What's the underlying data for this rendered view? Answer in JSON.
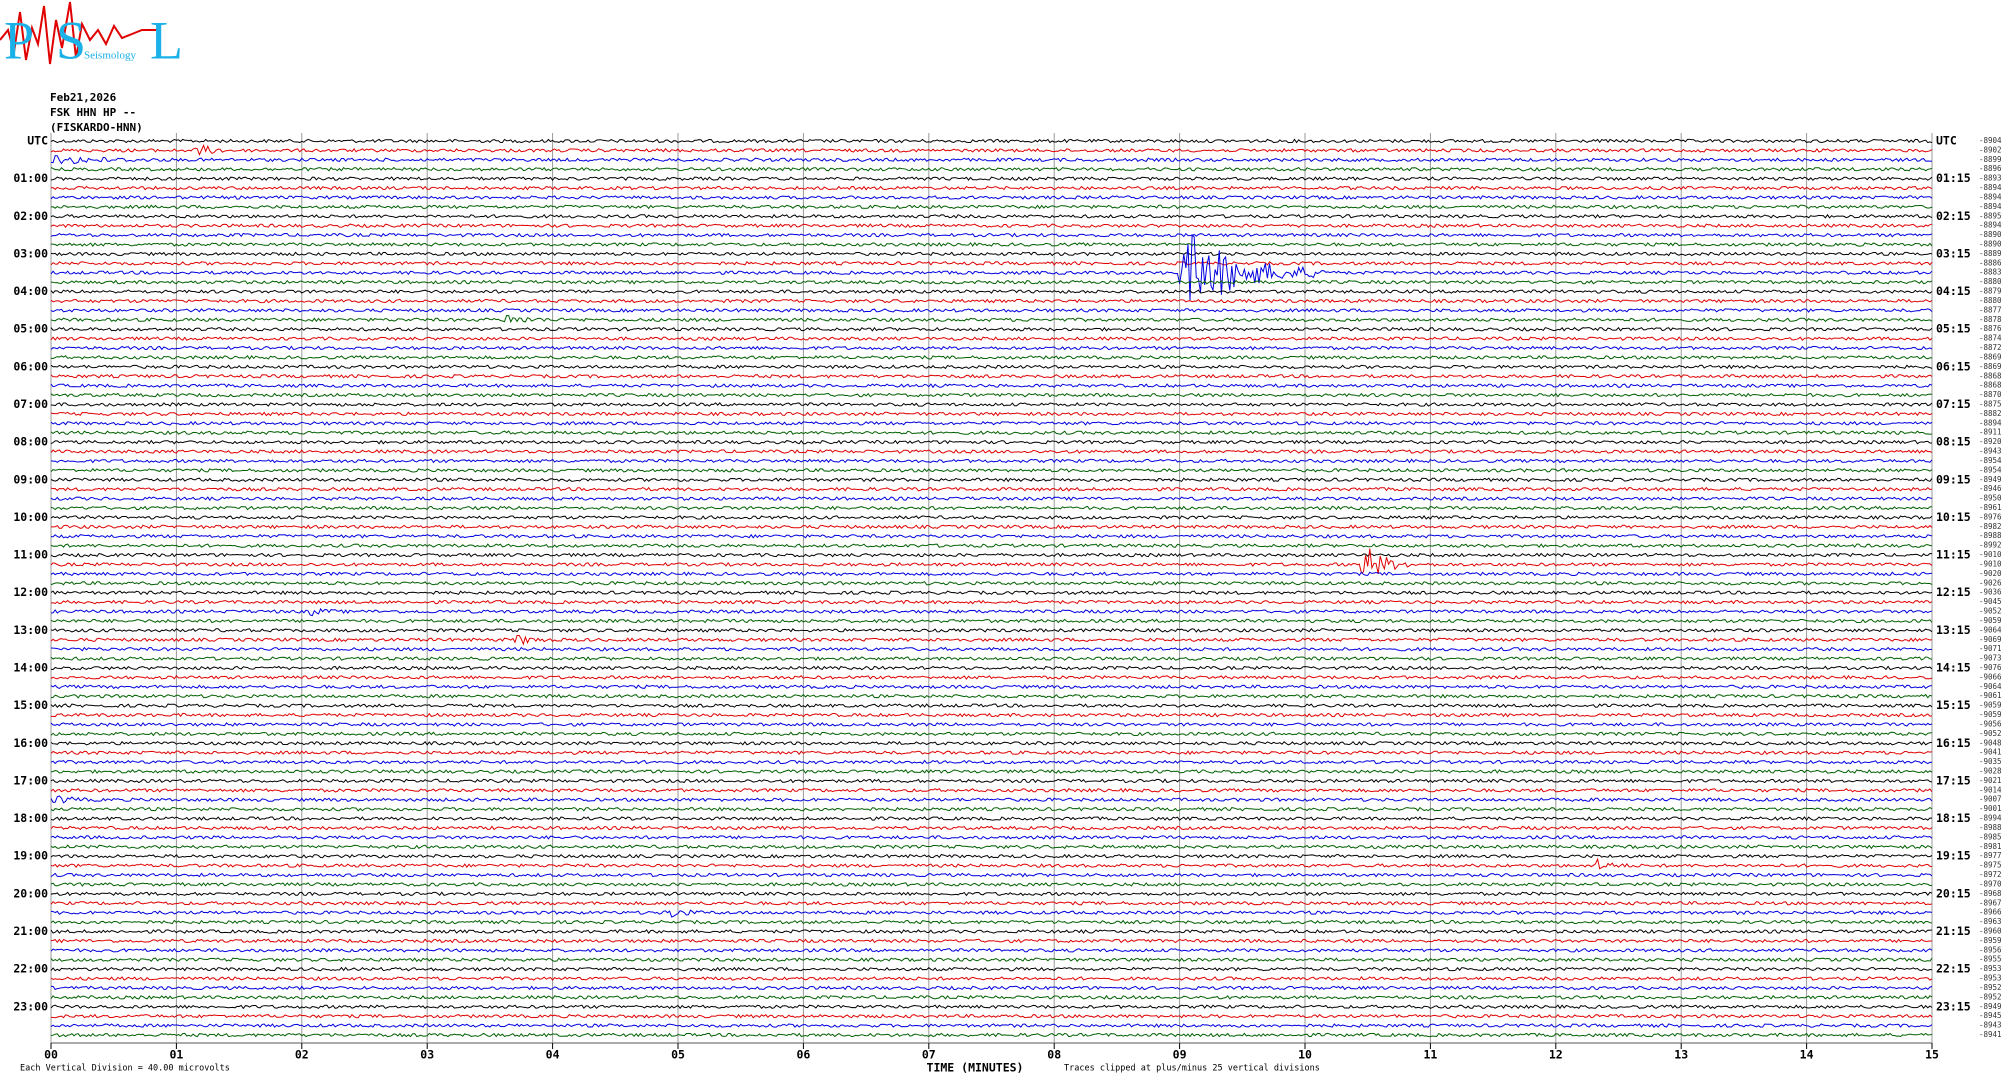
{
  "chart_data": {
    "type": "helicorder",
    "logo": {
      "letters": [
        "P",
        "S",
        "L"
      ],
      "text": "Seismology"
    },
    "date": "Feb21,2026",
    "station": "FSK HHN HP --",
    "station_name": "(FISKARDO-HNN)",
    "left_labels": [
      "UTC",
      null,
      null,
      null,
      "01:00",
      null,
      null,
      null,
      "02:00",
      null,
      null,
      null,
      "03:00",
      null,
      null,
      null,
      "04:00",
      null,
      null,
      null,
      "05:00",
      null,
      null,
      null,
      "06:00",
      null,
      null,
      null,
      "07:00",
      null,
      null,
      null,
      "08:00",
      null,
      null,
      null,
      "09:00",
      null,
      null,
      null,
      "10:00",
      null,
      null,
      null,
      "11:00",
      null,
      null,
      null,
      "12:00",
      null,
      null,
      null,
      "13:00",
      null,
      null,
      null,
      "14:00",
      null,
      null,
      null,
      "15:00",
      null,
      null,
      null,
      "16:00",
      null,
      null,
      null,
      "17:00",
      null,
      null,
      null,
      "18:00",
      null,
      null,
      null,
      "19:00",
      null,
      null,
      null,
      "20:00",
      null,
      null,
      null,
      "21:00",
      null,
      null,
      null,
      "22:00",
      null,
      null,
      null,
      "23:00",
      null,
      null,
      null
    ],
    "right_labels": [
      "UTC",
      null,
      null,
      null,
      "01:15",
      null,
      null,
      null,
      "02:15",
      null,
      null,
      null,
      "03:15",
      null,
      null,
      null,
      "04:15",
      null,
      null,
      null,
      "05:15",
      null,
      null,
      null,
      "06:15",
      null,
      null,
      null,
      "07:15",
      null,
      null,
      null,
      "08:15",
      null,
      null,
      null,
      "09:15",
      null,
      null,
      null,
      "10:15",
      null,
      null,
      null,
      "11:15",
      null,
      null,
      null,
      "12:15",
      null,
      null,
      null,
      "13:15",
      null,
      null,
      null,
      "14:15",
      null,
      null,
      null,
      "15:15",
      null,
      null,
      null,
      "16:15",
      null,
      null,
      null,
      "17:15",
      null,
      null,
      null,
      "18:15",
      null,
      null,
      null,
      "19:15",
      null,
      null,
      null,
      "20:15",
      null,
      null,
      null,
      "21:15",
      null,
      null,
      null,
      "22:15",
      null,
      null,
      null,
      "23:15",
      null,
      null,
      null
    ],
    "offsets": [
      -8904,
      -8902,
      -8899,
      -8896,
      -8893,
      -8894,
      -8894,
      -8894,
      -8895,
      -8894,
      -8890,
      -8890,
      -8889,
      -8886,
      -8883,
      -8880,
      -8879,
      -8880,
      -8877,
      -8878,
      -8876,
      -8874,
      -8872,
      -8869,
      -8869,
      -8868,
      -8868,
      -8870,
      -8875,
      -8882,
      -8894,
      -8911,
      -8920,
      -8943,
      -8954,
      -8954,
      -8949,
      -8946,
      -8950,
      -8961,
      -8976,
      -8982,
      -8988,
      -8992,
      -9010,
      -9010,
      -9020,
      -9026,
      -9036,
      -9045,
      -9052,
      -9059,
      -9064,
      -9069,
      -9071,
      -9073,
      -9076,
      -9066,
      -9064,
      -9061,
      -9059,
      -9059,
      -9056,
      -9052,
      -9048,
      -9041,
      -9035,
      -9028,
      -9021,
      -9014,
      -9007,
      -9001,
      -8994,
      -8988,
      -8985,
      -8981,
      -8977,
      -8975,
      -8972,
      -8970,
      -8968,
      -8967,
      -8966,
      -8963,
      -8960,
      -8959,
      -8956,
      -8955,
      -8953,
      -8953,
      -8952,
      -8952,
      -8949,
      -8945,
      -8943,
      -8941
    ],
    "trace_colors": [
      "#000000",
      "#e00000",
      "#0000e0",
      "#006000"
    ],
    "xlim": [
      0,
      15
    ],
    "xticks": [
      {
        "value": 0,
        "label": "00"
      },
      {
        "value": 1,
        "label": "01"
      },
      {
        "value": 2,
        "label": "02"
      },
      {
        "value": 3,
        "label": "03"
      },
      {
        "value": 4,
        "label": "04"
      },
      {
        "value": 5,
        "label": "05"
      },
      {
        "value": 6,
        "label": "06"
      },
      {
        "value": 7,
        "label": "07"
      },
      {
        "value": 8,
        "label": "08"
      },
      {
        "value": 9,
        "label": "09"
      },
      {
        "value": 10,
        "label": "10"
      },
      {
        "value": 11,
        "label": "11"
      },
      {
        "value": 12,
        "label": "12"
      },
      {
        "value": 13,
        "label": "13"
      },
      {
        "value": 14,
        "label": "14"
      },
      {
        "value": 15,
        "label": "15"
      }
    ],
    "grid": true,
    "xlabel": "TIME (MINUTES)",
    "scale_note": "Each Vertical Division =   40.00 microvolts",
    "clip_note": "Traces clipped at plus/minus 25 vertical divisions"
  }
}
